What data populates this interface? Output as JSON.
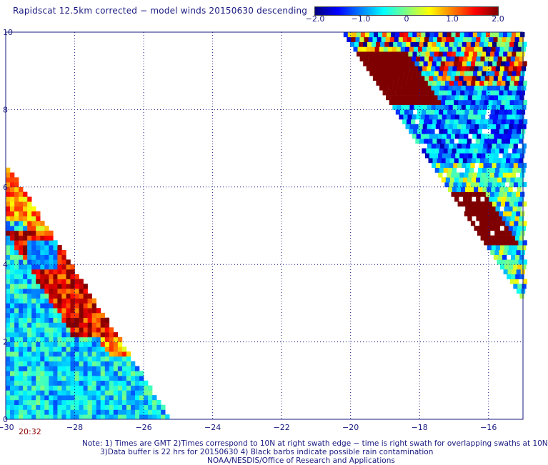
{
  "title": "Rapidscat 12.5km corrected − model winds 20150630 descending",
  "colorbar": {
    "colors": [
      "#00007f",
      "#0000ff",
      "#007fff",
      "#00ffff",
      "#7fff7f",
      "#ffff00",
      "#ff7f00",
      "#ff0000",
      "#7f0000"
    ],
    "ticks": [
      {
        "value": -2.0,
        "label": "−2.0"
      },
      {
        "value": -1.0,
        "label": "−1.0"
      },
      {
        "value": 0,
        "label": "0"
      },
      {
        "value": 1.0,
        "label": "1.0"
      },
      {
        "value": 2.0,
        "label": "2.0"
      }
    ],
    "range": [
      -2.0,
      2.0
    ]
  },
  "map": {
    "lon_range": [
      -30,
      -15
    ],
    "lat_range": [
      0,
      10
    ],
    "lon_ticks": [
      -30,
      -28,
      -26,
      -24,
      -22,
      -20,
      -18,
      -16
    ],
    "lon_labels": [
      "−30",
      "−28",
      "−26",
      "−24",
      "−22",
      "−20",
      "−18",
      "−16"
    ],
    "lat_ticks": [
      0,
      2,
      4,
      6,
      8,
      10
    ],
    "lat_labels": [
      "0",
      "2",
      "4",
      "6",
      "8",
      "10"
    ],
    "grid": "dotted",
    "cell_size_deg": 0.125,
    "swaths": [
      {
        "name": "left",
        "description_visible": false
      },
      {
        "name": "right",
        "description_visible": false
      }
    ]
  },
  "time_label": "20:32",
  "notes": [
    "Note: 1) Times are GMT 2)Times correspond to 10N at right swath edge − time is right swath for overlapping swaths at 10N",
    "3)Data buffer is 22 hrs for 20150630 4) Black barbs indicate possible rain contamination",
    "NOAA/NESDIS/Office of Research and Applications"
  ]
}
